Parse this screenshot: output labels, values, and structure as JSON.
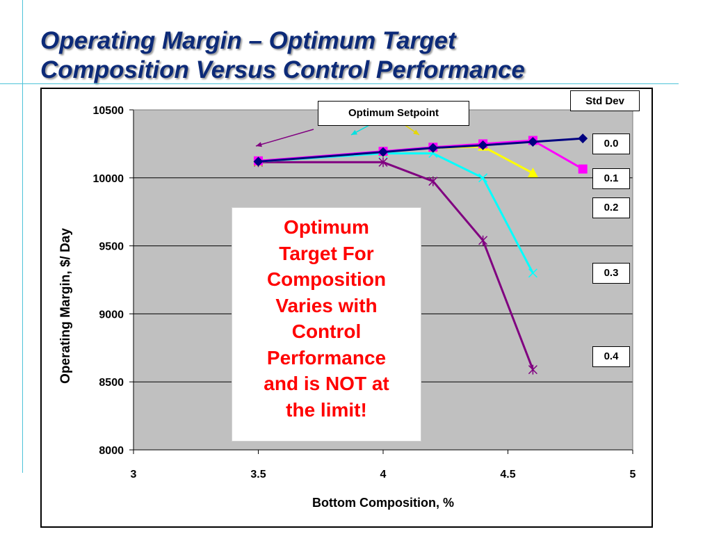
{
  "slide": {
    "title_line1": "Operating Margin – Optimum Target",
    "title_line2": "Composition Versus Control Performance"
  },
  "annotations": {
    "setpoint_label": "Optimum Setpoint",
    "stddev_label": "Std Dev",
    "series_labels": [
      "0.0",
      "0.1",
      "0.2",
      "0.3",
      "0.4"
    ],
    "callout_lines": [
      "Optimum",
      "Target For",
      "Composition",
      "Varies with",
      "Control",
      "Performance",
      "and is NOT at",
      "the limit!"
    ]
  },
  "chart_data": {
    "type": "line",
    "xlabel": "Bottom Composition, %",
    "ylabel": "Operating Margin, $/ Day",
    "xlim": [
      3,
      5
    ],
    "ylim": [
      8000,
      10500
    ],
    "xticks": [
      3,
      3.5,
      4,
      4.5,
      5
    ],
    "xtick_labels": [
      "3",
      "3.5",
      "4",
      "4.5",
      "5"
    ],
    "yticks": [
      8000,
      8500,
      9000,
      9500,
      10000,
      10500
    ],
    "ytick_labels": [
      "8000",
      "8500",
      "9000",
      "9500",
      "10000",
      "10500"
    ],
    "grid": "horizontal",
    "plot_background": "#c0c0c0",
    "legend": "right (labels beside line ends)",
    "series": [
      {
        "name": "0.0",
        "color": "#000080",
        "marker": "diamond",
        "x": [
          3.5,
          4.0,
          4.2,
          4.4,
          4.6,
          4.8
        ],
        "y": [
          10120,
          10190,
          10220,
          10240,
          10265,
          10290
        ]
      },
      {
        "name": "0.1",
        "color": "#ff00ff",
        "marker": "square",
        "x": [
          3.5,
          4.0,
          4.2,
          4.4,
          4.6,
          4.8
        ],
        "y": [
          10125,
          10195,
          10225,
          10250,
          10275,
          10065
        ]
      },
      {
        "name": "0.2",
        "color": "#ffff00",
        "marker": "triangle",
        "x": [
          3.5,
          4.0,
          4.2,
          4.4,
          4.6
        ],
        "y": [
          10120,
          10190,
          10220,
          10230,
          10035
        ]
      },
      {
        "name": "0.3",
        "color": "#00ffff",
        "marker": "x",
        "x": [
          3.5,
          4.0,
          4.2,
          4.4,
          4.6
        ],
        "y": [
          10120,
          10180,
          10180,
          10000,
          9300
        ]
      },
      {
        "name": "0.4",
        "color": "#800080",
        "marker": "star",
        "x": [
          3.5,
          4.0,
          4.2,
          4.4,
          4.6
        ],
        "y": [
          10115,
          10115,
          9975,
          9540,
          8590
        ]
      }
    ]
  }
}
